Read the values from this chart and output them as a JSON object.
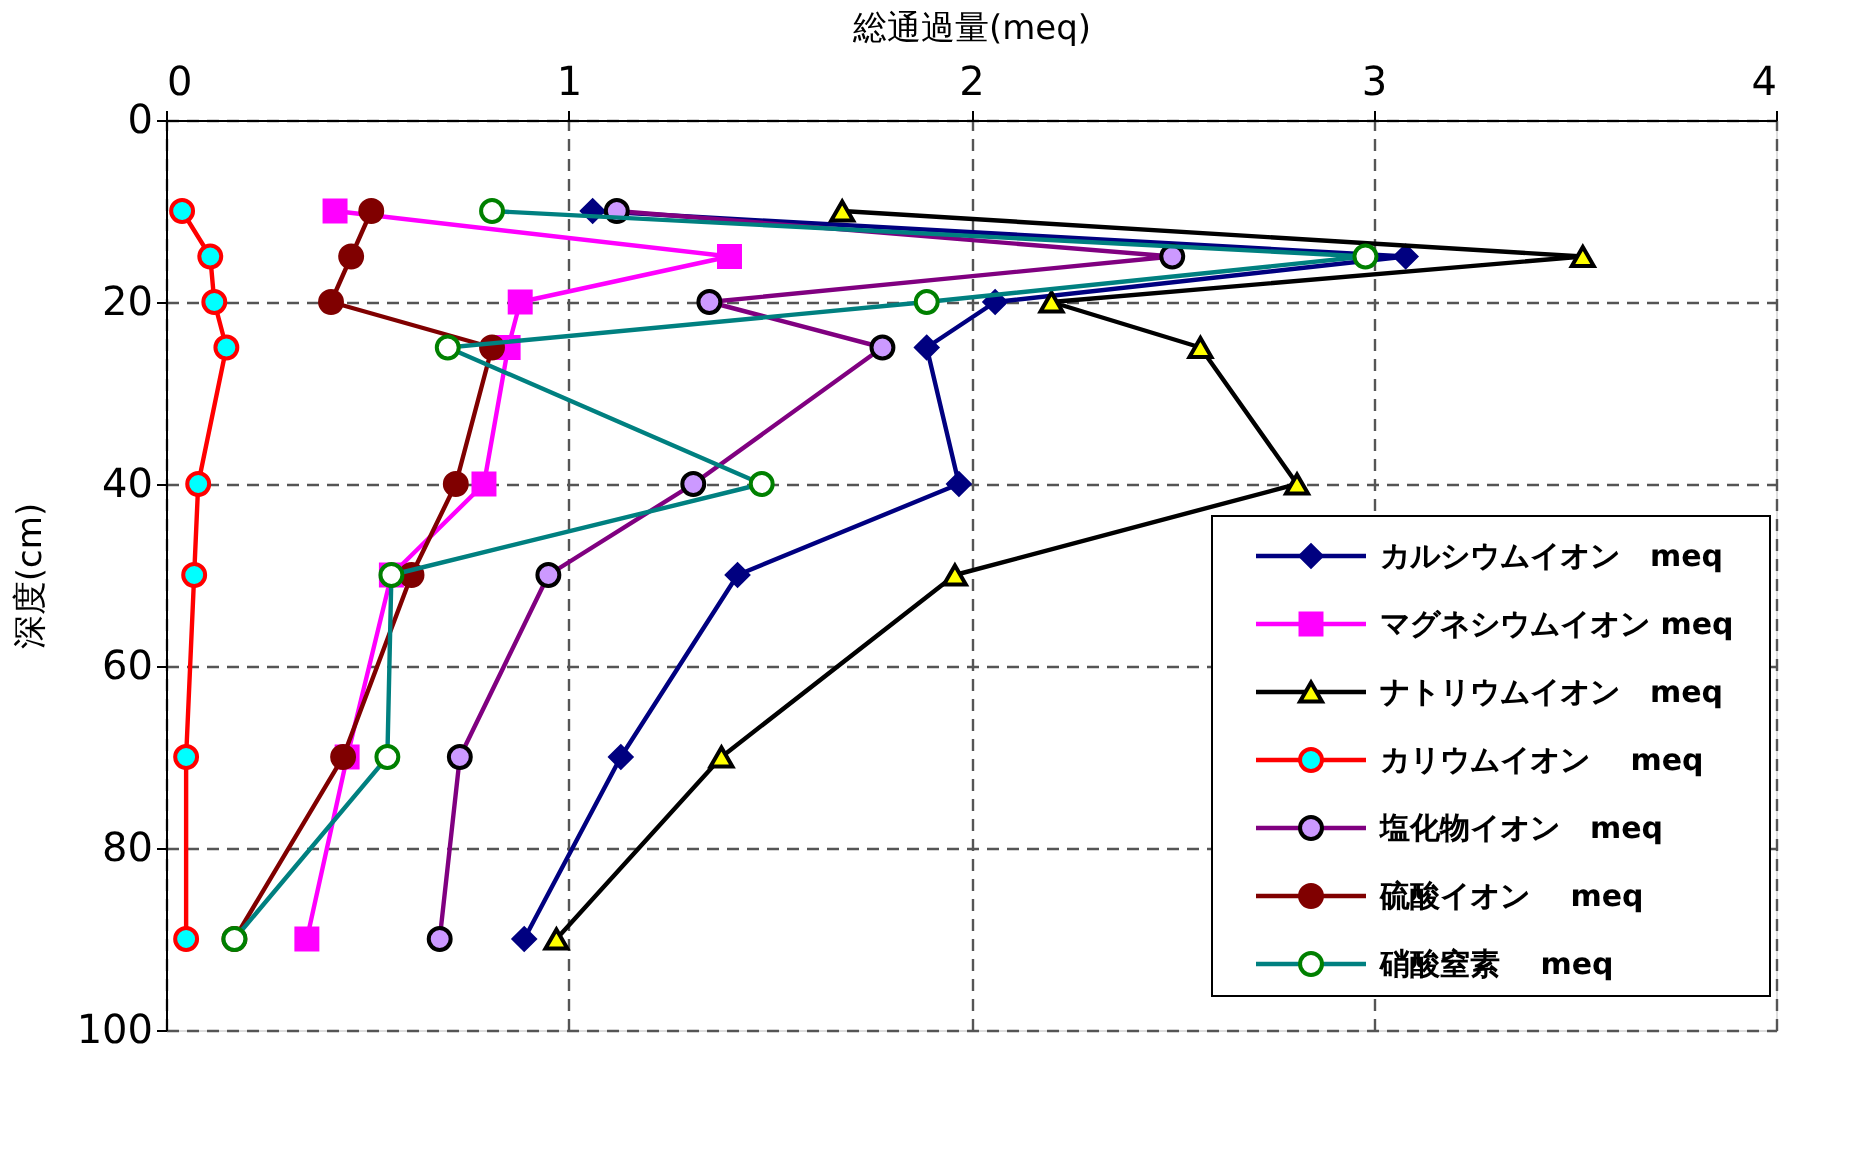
{
  "chart_data": {
    "type": "line",
    "orientation": "horizontal",
    "xlabel": "総通過量(meq)",
    "ylabel": "深度(cm)",
    "x": [
      10,
      15,
      20,
      25,
      40,
      50,
      70,
      90
    ],
    "xlim": [
      0,
      4
    ],
    "xticks": [
      0,
      1,
      2,
      3,
      4
    ],
    "ylim": [
      100,
      0
    ],
    "yticks": [
      0,
      20,
      40,
      60,
      80,
      100
    ],
    "grid": true,
    "legend": "bottom right",
    "series": [
      {
        "name": "カルシウムイオン　meq",
        "color": "#000080",
        "marker": "diamond",
        "values": [
          1.06,
          3.08,
          2.06,
          1.89,
          1.97,
          1.42,
          1.13,
          0.89
        ]
      },
      {
        "name": "マグネシウムイオン meq",
        "color": "#ff00ff",
        "marker": "square",
        "values": [
          0.42,
          1.4,
          0.88,
          0.85,
          0.79,
          0.56,
          0.45,
          0.35
        ]
      },
      {
        "name": "ナトリウムイオン　meq",
        "color": "#000000",
        "marker": "triangle",
        "values": [
          1.68,
          3.52,
          2.2,
          2.57,
          2.81,
          1.96,
          1.38,
          0.97
        ]
      },
      {
        "name": "カリウムイオン　 meq",
        "color": "#ff0000",
        "marker": "circle",
        "values": [
          0.04,
          0.11,
          0.12,
          0.15,
          0.08,
          0.07,
          0.05,
          0.05
        ]
      },
      {
        "name": "塩化物イオン　meq",
        "color": "#800080",
        "marker": "circle",
        "values": [
          1.12,
          2.5,
          1.35,
          1.78,
          1.31,
          0.95,
          0.73,
          0.68
        ]
      },
      {
        "name": "硫酸イオン　 meq",
        "color": "#800000",
        "marker": "circle",
        "values": [
          0.51,
          0.46,
          0.41,
          0.81,
          0.72,
          0.61,
          0.44,
          0.17
        ]
      },
      {
        "name": "硝酸窒素　 meq",
        "color": "#008080",
        "marker": "circle",
        "values": [
          0.81,
          2.98,
          1.89,
          0.7,
          1.48,
          0.56,
          0.55,
          0.17
        ]
      }
    ]
  }
}
